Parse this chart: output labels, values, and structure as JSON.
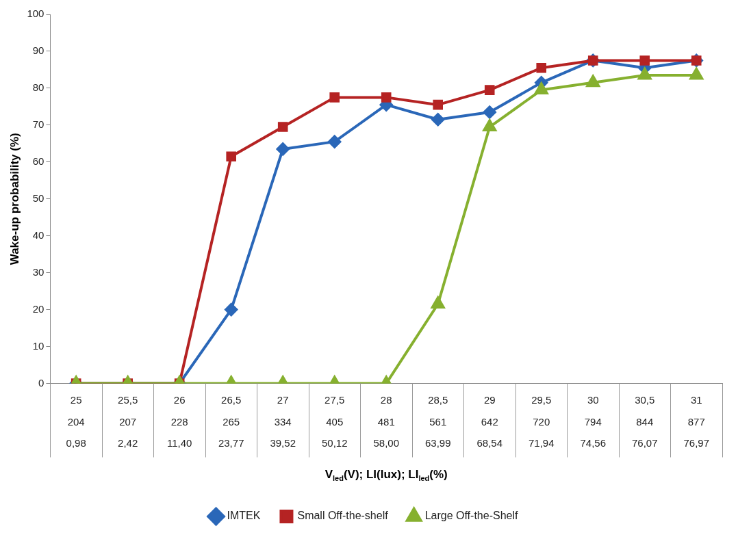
{
  "chart_data": {
    "type": "line",
    "ylabel": "Wake-up probability (%)",
    "xlabel": "V$_{led}$(V); LI(lux); LI$_{led}$(%)",
    "categories": [
      "25\n204\n0,98",
      "25,5\n207\n2,42",
      "26\n228\n11,40",
      "26,5\n265\n23,77",
      "27\n334\n39,52",
      "27,5\n405\n50,12",
      "28\n481\n58,00",
      "28,5\n561\n63,99",
      "29\n642\n68,54",
      "29,5\n720\n71,94",
      "30\n794\n74,56",
      "30,5\n844\n76,07",
      "31\n877\n76,97"
    ],
    "series": [
      {
        "name": "IMTEK",
        "color": "#2a67b8",
        "marker": "diamond",
        "values": [
          0,
          0,
          0,
          20,
          63.5,
          65.5,
          75.5,
          71.5,
          73.5,
          81.5,
          87.5,
          85.5,
          87.5
        ]
      },
      {
        "name": "Small Off-the-shelf",
        "color": "#b52323",
        "marker": "square",
        "values": [
          0,
          0,
          0,
          61.5,
          69.5,
          77.5,
          77.5,
          75.5,
          79.5,
          85.5,
          87.5,
          87.5,
          87.5
        ]
      },
      {
        "name": "Large Off-the-Shelf",
        "color": "#86b02f",
        "marker": "triangle",
        "values": [
          0,
          0,
          0,
          0,
          0,
          0,
          0,
          21.5,
          69.5,
          79.5,
          81.5,
          83.5,
          83.5
        ]
      }
    ],
    "ylim": [
      0,
      100
    ],
    "yticks": [
      0,
      10,
      20,
      30,
      40,
      50,
      60,
      70,
      80,
      90,
      100
    ],
    "legend": "bottom"
  }
}
